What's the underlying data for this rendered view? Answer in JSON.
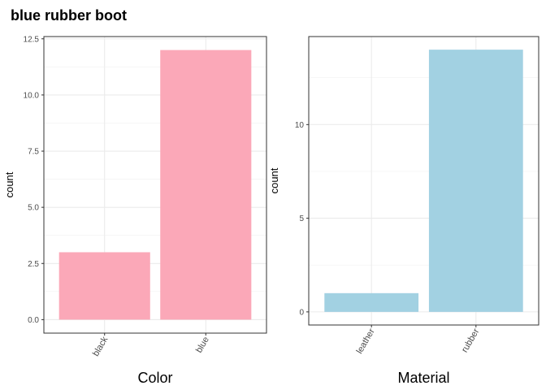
{
  "title": "blue rubber boot",
  "chart_data": [
    {
      "type": "bar",
      "title": "",
      "categories": [
        "black",
        "blue"
      ],
      "values": [
        3,
        12
      ],
      "xlabel": "Color",
      "ylabel": "count",
      "ylim": [
        0,
        12.5
      ],
      "yticks": [
        0,
        2.5,
        5,
        7.5,
        10,
        12.5
      ],
      "ytick_labels": [
        "0.0",
        "2.5",
        "5.0",
        "7.5",
        "10.0",
        "12.5"
      ],
      "bar_color": "#FBA8B8",
      "grid": true,
      "x_tick_rotation": -60
    },
    {
      "type": "bar",
      "title": "",
      "categories": [
        "leather",
        "rubber"
      ],
      "values": [
        1,
        14
      ],
      "xlabel": "Material",
      "ylabel": "count",
      "ylim": [
        0,
        14
      ],
      "yticks": [
        0,
        5,
        10
      ],
      "ytick_labels": [
        "0",
        "5",
        "10"
      ],
      "bar_color": "#A2D1E2",
      "grid": true,
      "x_tick_rotation": -60
    }
  ]
}
